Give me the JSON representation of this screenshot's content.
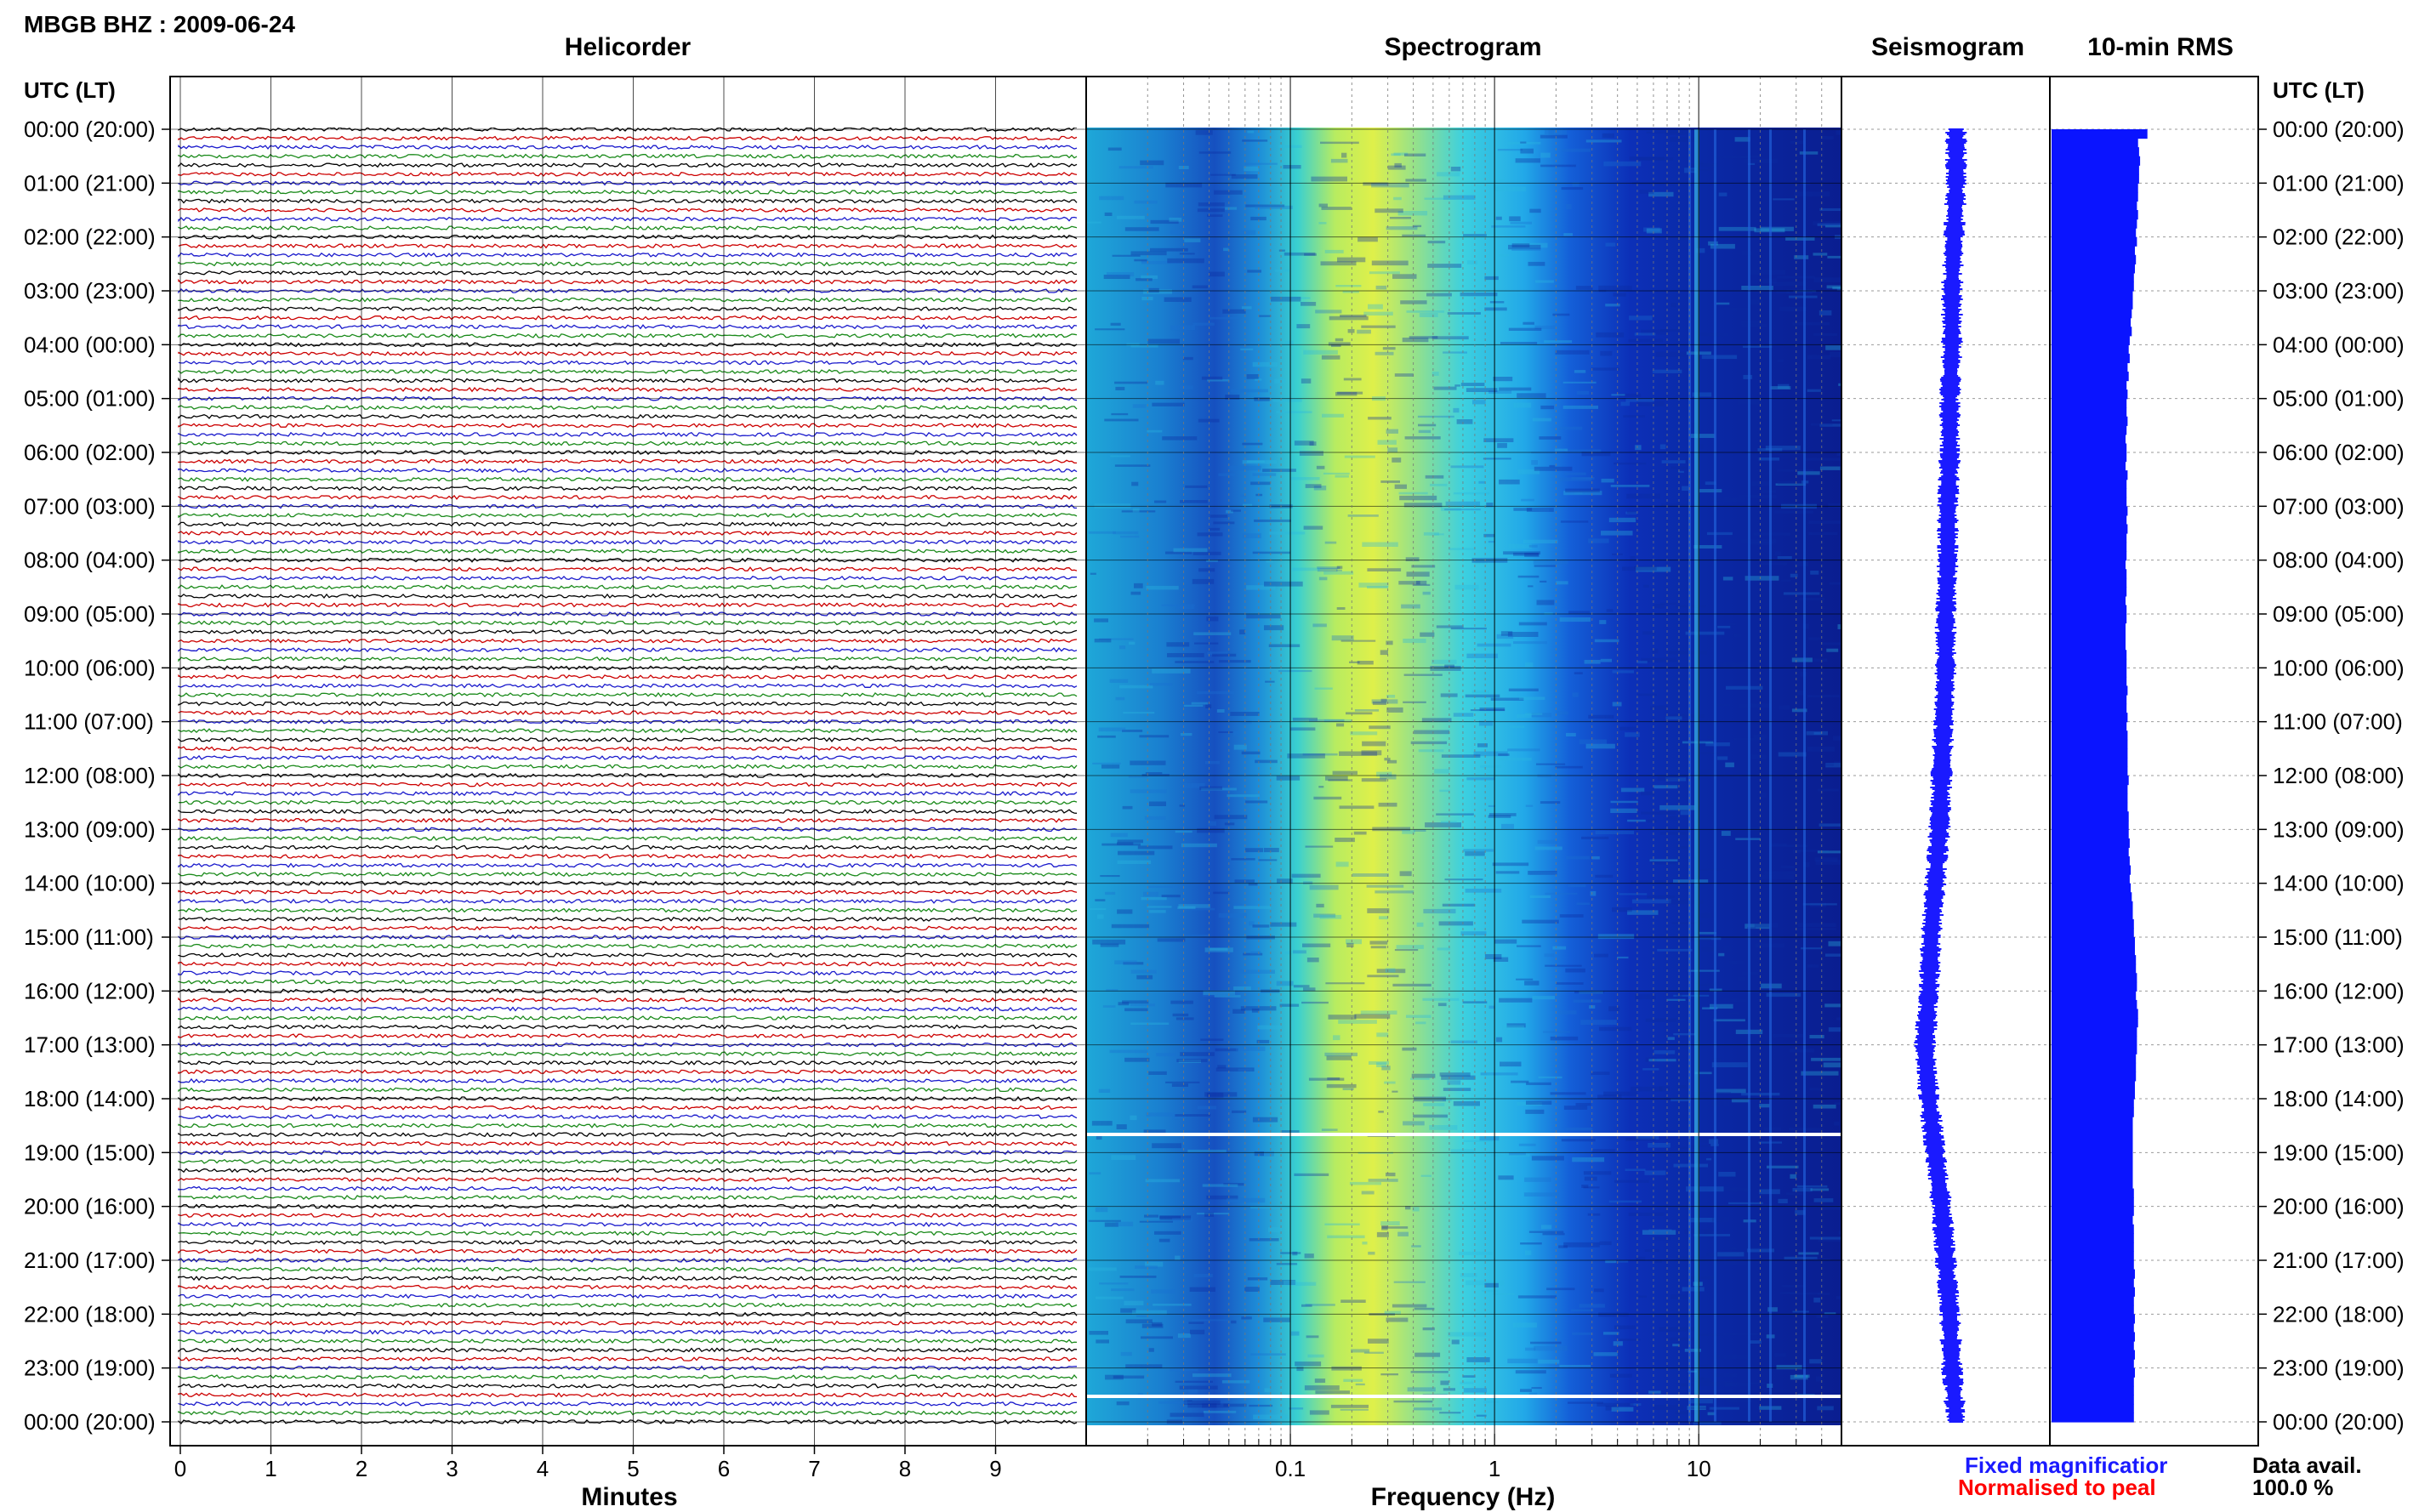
{
  "header": {
    "station_label": "MBGB BHZ : 2009-06-24"
  },
  "panels": {
    "helicorder": "Helicorder",
    "spectrogram": "Spectrogram",
    "seismogram": "Seismogram",
    "rms": "10-min RMS"
  },
  "axis": {
    "left_heading": "UTC (LT)",
    "right_heading": "UTC (LT)",
    "minutes_label": "Minutes",
    "frequency_label": "Frequency (Hz)"
  },
  "legend": {
    "fixed": "Fixed magnificatior",
    "normalised": "Normalised to peal",
    "fixed_color": "#1a1aff",
    "normalised_color": "#ff0000"
  },
  "data_avail": {
    "label": "Data avail.",
    "value": "100.0 %"
  },
  "colors": {
    "trace_cycle": [
      "#000000",
      "#cc0000",
      "#1a1acc",
      "#1a8a1a"
    ],
    "seismogram": "#1a1aff",
    "rms": "#0a14ff",
    "spec_low": "#0a1a9a",
    "spec_mid": "#18c8e8",
    "spec_high": "#f0f040"
  },
  "chart_data": {
    "type": "heatmap",
    "time_ticks": [
      "00:00 (20:00)",
      "01:00 (21:00)",
      "02:00 (22:00)",
      "03:00 (23:00)",
      "04:00 (00:00)",
      "05:00 (01:00)",
      "06:00 (02:00)",
      "07:00 (03:00)",
      "08:00 (04:00)",
      "09:00 (05:00)",
      "10:00 (06:00)",
      "11:00 (07:00)",
      "12:00 (08:00)",
      "13:00 (09:00)",
      "14:00 (10:00)",
      "15:00 (11:00)",
      "16:00 (12:00)",
      "17:00 (13:00)",
      "18:00 (14:00)",
      "19:00 (15:00)",
      "20:00 (16:00)",
      "21:00 (17:00)",
      "22:00 (18:00)",
      "23:00 (19:00)",
      "00:00 (20:00)"
    ],
    "minutes_ticks": [
      "0",
      "1",
      "2",
      "3",
      "4",
      "5",
      "6",
      "7",
      "8",
      "9"
    ],
    "minutes_range": [
      0,
      10
    ],
    "freq_ticks": [
      "0.1",
      "1",
      "10"
    ],
    "freq_range": [
      0.01,
      50
    ],
    "freq_scale": "log",
    "helicorder_lines": 144,
    "rms_values": [
      0.92,
      0.83,
      0.84,
      0.85,
      0.84,
      0.84,
      0.83,
      0.83,
      0.82,
      0.83,
      0.82,
      0.81,
      0.82,
      0.8,
      0.81,
      0.8,
      0.79,
      0.79,
      0.78,
      0.78,
      0.77,
      0.76,
      0.77,
      0.75,
      0.74,
      0.75,
      0.73,
      0.74,
      0.72,
      0.73,
      0.72,
      0.72,
      0.73,
      0.72,
      0.71,
      0.72,
      0.72,
      0.71,
      0.73,
      0.72,
      0.72,
      0.72,
      0.73,
      0.72,
      0.73,
      0.72,
      0.72,
      0.72,
      0.71,
      0.72,
      0.72,
      0.72,
      0.71,
      0.72,
      0.72,
      0.71,
      0.71,
      0.71,
      0.72,
      0.72,
      0.72,
      0.72,
      0.73,
      0.72,
      0.72,
      0.73,
      0.72,
      0.73,
      0.73,
      0.73,
      0.73,
      0.73,
      0.74,
      0.73,
      0.73,
      0.73,
      0.74,
      0.74,
      0.74,
      0.75,
      0.74,
      0.75,
      0.76,
      0.75,
      0.76,
      0.77,
      0.78,
      0.78,
      0.79,
      0.79,
      0.8,
      0.8,
      0.81,
      0.81,
      0.82,
      0.82,
      0.81,
      0.82,
      0.83,
      0.83,
      0.82,
      0.82,
      0.82,
      0.81,
      0.81,
      0.81,
      0.8,
      0.8,
      0.79,
      0.79,
      0.78,
      0.78,
      0.78,
      0.78,
      0.78,
      0.78,
      0.78,
      0.78,
      0.79,
      0.79,
      0.79,
      0.78,
      0.79,
      0.79,
      0.79,
      0.79,
      0.79,
      0.8,
      0.79,
      0.8,
      0.79,
      0.79,
      0.8,
      0.79,
      0.8,
      0.79,
      0.8,
      0.79,
      0.8,
      0.79,
      0.79,
      0.79,
      0.79,
      0.79
    ],
    "seismogram_offset": [
      0.55,
      0.55,
      0.54,
      0.53,
      0.53,
      0.52,
      0.52,
      0.51,
      0.51,
      0.5,
      0.5,
      0.49,
      0.48,
      0.47,
      0.45,
      0.43,
      0.42,
      0.4,
      0.42,
      0.45,
      0.48,
      0.5,
      0.52,
      0.53,
      0.55
    ]
  }
}
